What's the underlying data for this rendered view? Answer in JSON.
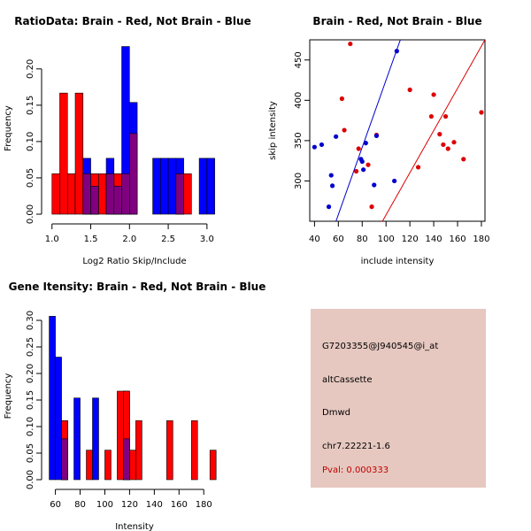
{
  "chart_data": [
    {
      "type": "histogram",
      "title": "RatioData: Brain - Red, Not Brain - Blue",
      "xlabel": "Log2 Ratio Skip/Include",
      "ylabel": "Frequency",
      "xlim": [
        0.98,
        3.15
      ],
      "ylim": [
        0,
        0.24
      ],
      "xticks": [
        "1.0",
        "1.5",
        "2.0",
        "2.5",
        "3.0"
      ],
      "xtick_values": [
        1.0,
        1.5,
        2.0,
        2.5,
        3.0
      ],
      "yticks": [
        "0.00",
        "0.05",
        "0.10",
        "0.15",
        "0.20"
      ],
      "ytick_values": [
        0.0,
        0.05,
        0.1,
        0.15,
        0.2
      ],
      "series": [
        {
          "name": "Brain",
          "color": "#ff0000",
          "bins": [
            {
              "x0": 1.0,
              "x1": 1.1,
              "y": 0.0556
            },
            {
              "x0": 1.1,
              "x1": 1.2,
              "y": 0.1667
            },
            {
              "x0": 1.2,
              "x1": 1.3,
              "y": 0.0556
            },
            {
              "x0": 1.3,
              "x1": 1.4,
              "y": 0.1667
            },
            {
              "x0": 1.4,
              "x1": 1.5,
              "y": 0.0556
            },
            {
              "x0": 1.5,
              "x1": 1.6,
              "y": 0.0556
            },
            {
              "x0": 1.6,
              "x1": 1.7,
              "y": 0.0556
            },
            {
              "x0": 1.7,
              "x1": 1.8,
              "y": 0.0556
            },
            {
              "x0": 1.8,
              "x1": 1.9,
              "y": 0.0556
            },
            {
              "x0": 1.9,
              "x1": 2.0,
              "y": 0.0556
            },
            {
              "x0": 2.0,
              "x1": 2.1,
              "y": 0.1111
            },
            {
              "x0": 2.6,
              "x1": 2.7,
              "y": 0.0556
            },
            {
              "x0": 2.7,
              "x1": 2.8,
              "y": 0.0556
            }
          ]
        },
        {
          "name": "Not Brain",
          "color": "#0000ff",
          "bins": [
            {
              "x0": 1.4,
              "x1": 1.5,
              "y": 0.0769
            },
            {
              "x0": 1.5,
              "x1": 1.6,
              "y": 0.0385
            },
            {
              "x0": 1.7,
              "x1": 1.8,
              "y": 0.0769
            },
            {
              "x0": 1.8,
              "x1": 1.9,
              "y": 0.0385
            },
            {
              "x0": 1.9,
              "x1": 2.0,
              "y": 0.2308
            },
            {
              "x0": 2.0,
              "x1": 2.1,
              "y": 0.1538
            },
            {
              "x0": 2.3,
              "x1": 2.4,
              "y": 0.0769
            },
            {
              "x0": 2.4,
              "x1": 2.5,
              "y": 0.0769
            },
            {
              "x0": 2.5,
              "x1": 2.6,
              "y": 0.0769
            },
            {
              "x0": 2.6,
              "x1": 2.7,
              "y": 0.0769
            },
            {
              "x0": 2.9,
              "x1": 3.0,
              "y": 0.0769
            },
            {
              "x0": 3.0,
              "x1": 3.1,
              "y": 0.0769
            }
          ]
        }
      ],
      "overlap_color": "#800080"
    },
    {
      "type": "scatter",
      "title": "Brain - Red, Not Brain - Blue",
      "xlabel": "include intensity",
      "ylabel": "skip intensity",
      "xlim": [
        36,
        183
      ],
      "ylim": [
        250,
        475
      ],
      "xticks": [
        "40",
        "60",
        "80",
        "100",
        "120",
        "140",
        "160",
        "180"
      ],
      "xtick_values": [
        40,
        60,
        80,
        100,
        120,
        140,
        160,
        180
      ],
      "yticks": [
        "300",
        "350",
        "400",
        "450"
      ],
      "ytick_values": [
        300,
        350,
        400,
        450
      ],
      "series": [
        {
          "name": "Brain",
          "color": "#dd0000",
          "points": [
            [
              70,
              470
            ],
            [
              63,
              402
            ],
            [
              65,
              363
            ],
            [
              77,
              340
            ],
            [
              85,
              320
            ],
            [
              88,
              268
            ],
            [
              92,
              357
            ],
            [
              75,
              312
            ],
            [
              120,
              413
            ],
            [
              140,
              407
            ],
            [
              138,
              380
            ],
            [
              150,
              380
            ],
            [
              145,
              358
            ],
            [
              148,
              345
            ],
            [
              157,
              348
            ],
            [
              152,
              340
            ],
            [
              165,
              327
            ],
            [
              127,
              317
            ],
            [
              180,
              385
            ]
          ],
          "fit": [
            [
              97,
              250
            ],
            [
              183,
              475
            ]
          ]
        },
        {
          "name": "Not Brain",
          "color": "#0000cc",
          "points": [
            [
              40,
              342
            ],
            [
              46,
              345
            ],
            [
              58,
              355
            ],
            [
              52,
              268
            ],
            [
              54,
              307
            ],
            [
              55,
              294
            ],
            [
              79,
              327
            ],
            [
              80,
              324
            ],
            [
              81,
              314
            ],
            [
              83,
              347
            ],
            [
              90,
              295
            ],
            [
              92,
              356
            ],
            [
              107,
              300
            ],
            [
              109,
              461
            ]
          ],
          "fit": [
            [
              58,
              250
            ],
            [
              112,
              475
            ]
          ]
        }
      ]
    },
    {
      "type": "histogram",
      "title": "Gene Itensity: Brain - Red, Not Brain - Blue",
      "xlabel": "Intensity",
      "ylabel": "Frequency",
      "xlim": [
        56,
        192
      ],
      "ylim": [
        0,
        0.32
      ],
      "xticks": [
        "60",
        "80",
        "100",
        "120",
        "140",
        "160",
        "180"
      ],
      "xtick_values": [
        60,
        80,
        100,
        120,
        140,
        160,
        180
      ],
      "yticks": [
        "0.00",
        "0.05",
        "0.10",
        "0.15",
        "0.20",
        "0.25",
        "0.30"
      ],
      "ytick_values": [
        0.0,
        0.05,
        0.1,
        0.15,
        0.2,
        0.25,
        0.3
      ],
      "series": [
        {
          "name": "Brain",
          "color": "#ff0000",
          "bins": [
            {
              "x0": 65,
              "x1": 70,
              "y": 0.1111
            },
            {
              "x0": 85,
              "x1": 90,
              "y": 0.0556
            },
            {
              "x0": 100,
              "x1": 105,
              "y": 0.0556
            },
            {
              "x0": 110,
              "x1": 115,
              "y": 0.1667
            },
            {
              "x0": 115,
              "x1": 120,
              "y": 0.1667
            },
            {
              "x0": 120,
              "x1": 125,
              "y": 0.0556
            },
            {
              "x0": 125,
              "x1": 130,
              "y": 0.1111
            },
            {
              "x0": 150,
              "x1": 155,
              "y": 0.1111
            },
            {
              "x0": 170,
              "x1": 175,
              "y": 0.1111
            },
            {
              "x0": 185,
              "x1": 190,
              "y": 0.0556
            }
          ]
        },
        {
          "name": "Not Brain",
          "color": "#0000ff",
          "bins": [
            {
              "x0": 55,
              "x1": 60,
              "y": 0.3077
            },
            {
              "x0": 60,
              "x1": 65,
              "y": 0.2308
            },
            {
              "x0": 65,
              "x1": 70,
              "y": 0.0769
            },
            {
              "x0": 75,
              "x1": 80,
              "y": 0.1538
            },
            {
              "x0": 90,
              "x1": 95,
              "y": 0.1538
            },
            {
              "x0": 115,
              "x1": 120,
              "y": 0.0769
            }
          ]
        }
      ],
      "overlap_color": "#800080"
    }
  ],
  "info": {
    "probe": "G7203355@J940545@i_at",
    "event": "altCassette",
    "gene": "Dmwd",
    "location": "chr7.22221-1.6",
    "pval": "Pval: 0.000333",
    "pval_color": "#c00000",
    "bg_color": "#e6c8c0"
  }
}
